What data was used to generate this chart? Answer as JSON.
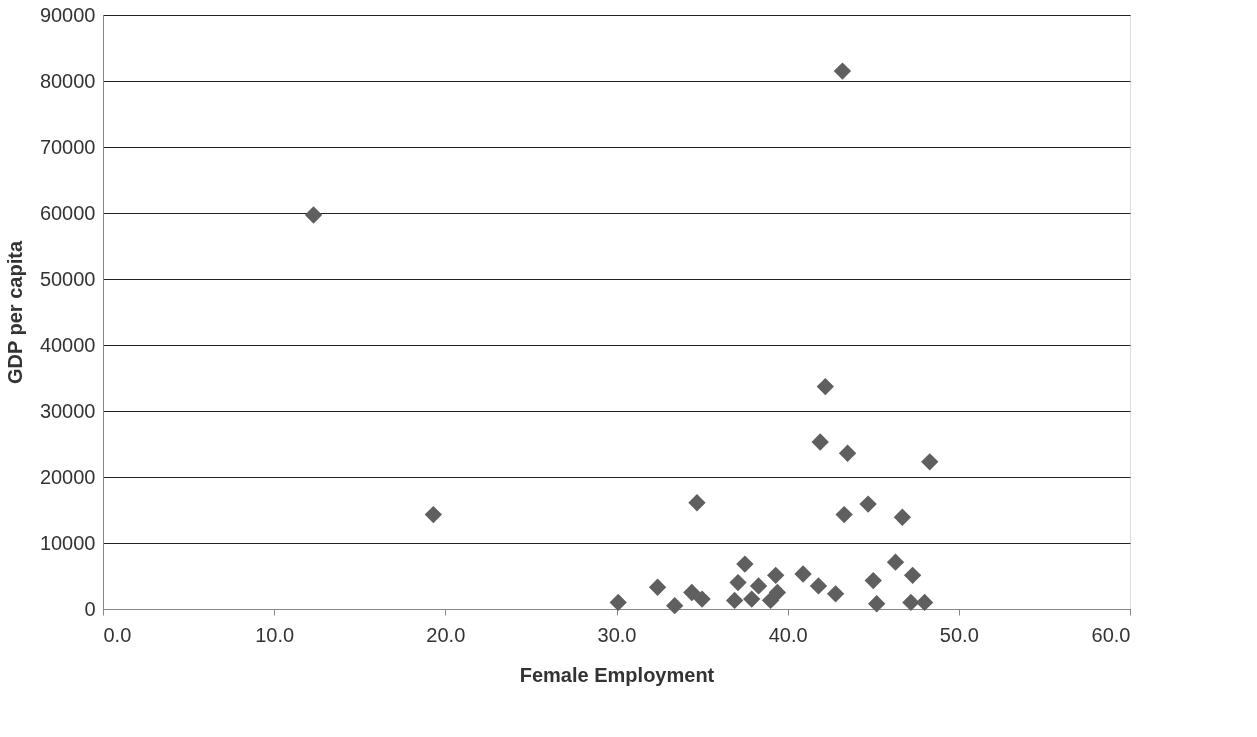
{
  "chart_data": {
    "type": "scatter",
    "xlabel": "Female Employment",
    "ylabel": "GDP per capita",
    "series": [
      {
        "color": "#5f5f5f",
        "x": [
          43.2,
          12.3,
          42.2,
          41.9,
          43.5,
          48.3,
          34.7,
          19.3,
          44.7,
          43.3,
          46.7,
          30.1,
          32.4,
          33.4,
          34.4,
          35.0,
          37.5,
          37.1,
          36.9,
          38.3,
          37.9,
          39.3,
          39.4,
          40.9,
          41.8,
          42.8,
          45.0,
          45.2,
          46.3,
          47.3,
          47.2,
          48.0,
          39.0
        ],
        "values": [
          81500,
          59700,
          33700,
          25300,
          23600,
          22300,
          16100,
          14300,
          15900,
          14300,
          13900,
          1000,
          3300,
          500,
          2500,
          1500,
          6800,
          4000,
          1300,
          3500,
          1500,
          5100,
          2500,
          5300,
          3500,
          2300,
          4300,
          800,
          7100,
          5100,
          1000,
          1000,
          1300
        ]
      }
    ],
    "xlim": [
      0,
      60
    ],
    "ylim": [
      0,
      90000
    ],
    "xticks": [
      {
        "value": 0,
        "label": "0.0"
      },
      {
        "value": 10,
        "label": "10.0"
      },
      {
        "value": 20,
        "label": "20.0"
      },
      {
        "value": 30,
        "label": "30.0"
      },
      {
        "value": 40,
        "label": "40.0"
      },
      {
        "value": 50,
        "label": "50.0"
      },
      {
        "value": 60,
        "label": "60.0"
      }
    ],
    "yticks": [
      0,
      10000,
      20000,
      30000,
      40000,
      50000,
      60000,
      70000,
      80000,
      90000
    ],
    "grid": "y",
    "marker": "diamond"
  }
}
